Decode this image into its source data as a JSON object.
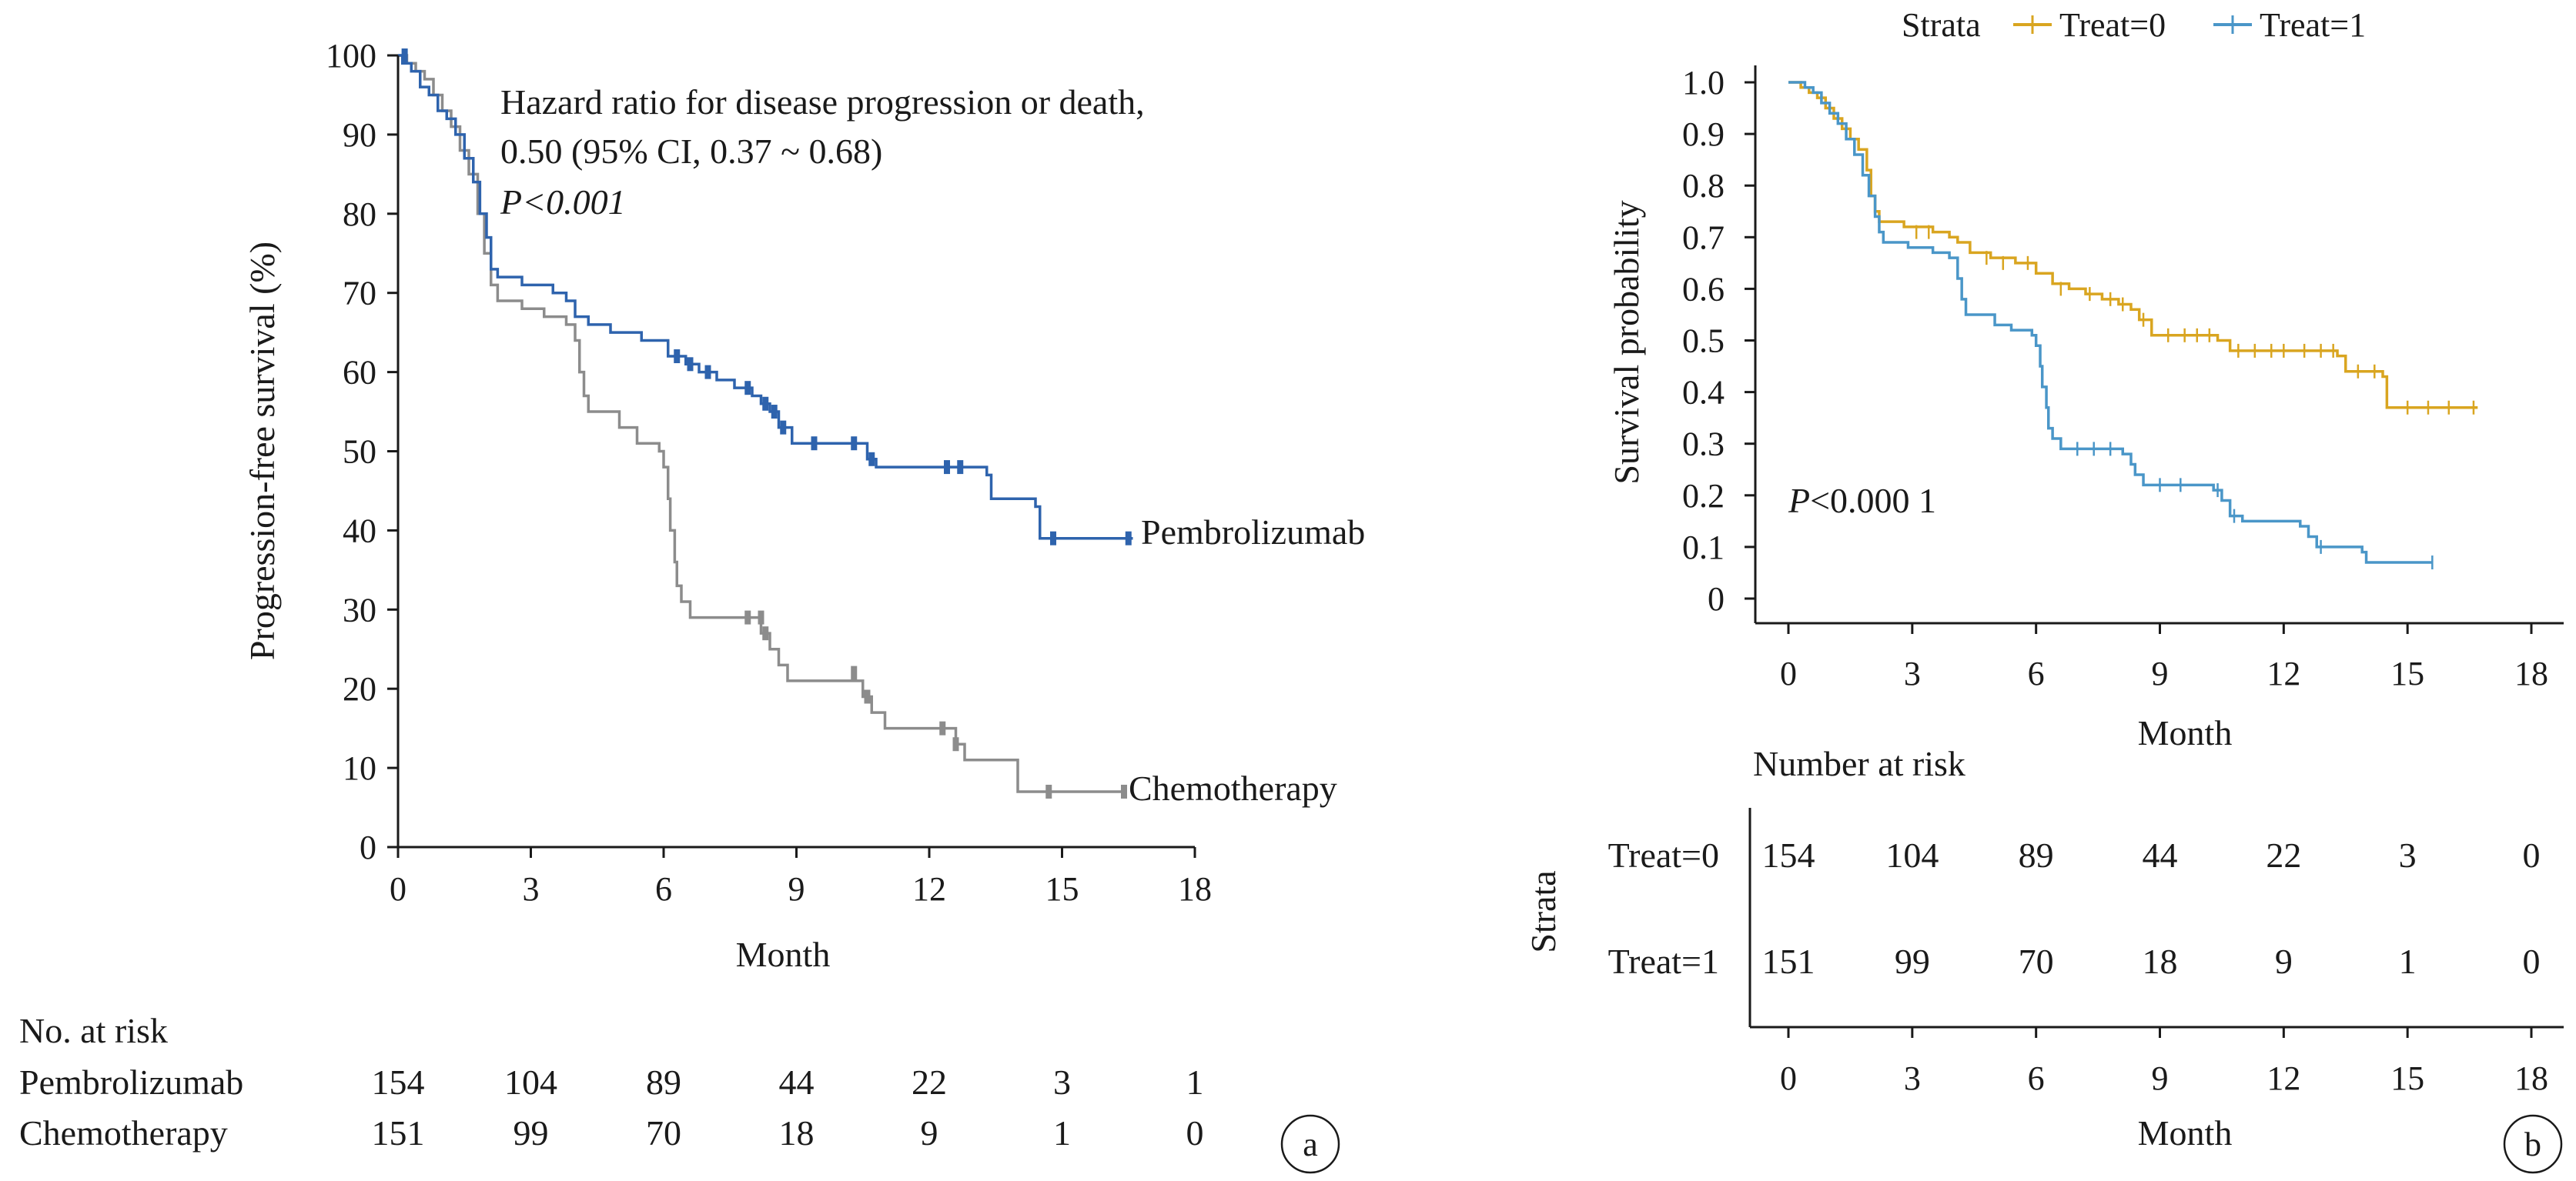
{
  "colors": {
    "pembrolizumab": "#2e63ad",
    "chemotherapy": "#8c8c8c",
    "treat0": "#d9a520",
    "treat1": "#4a96c8",
    "axis": "#1a1a1a"
  },
  "chart_data": [
    {
      "type": "line",
      "panel_label": "a",
      "xlabel": "Month",
      "ylabel": "Progression-free survival (%)",
      "xticks": [
        0,
        3,
        6,
        9,
        12,
        15,
        18
      ],
      "yticks": [
        0,
        10,
        20,
        30,
        40,
        50,
        60,
        70,
        80,
        90,
        100
      ],
      "xlim": [
        0,
        18
      ],
      "ylim": [
        0,
        100
      ],
      "annotation_lines": [
        "Hazard ratio for disease progression or death,",
        "0.50 (95% CI, 0.37 ~ 0.68)",
        "P<0.001"
      ],
      "series": [
        {
          "name": "Pembrolizumab",
          "color": "#2e63ad",
          "steps": [
            [
              0,
              100
            ],
            [
              0.1,
              99
            ],
            [
              0.3,
              98
            ],
            [
              0.5,
              96
            ],
            [
              0.7,
              95
            ],
            [
              0.9,
              93
            ],
            [
              1.1,
              92
            ],
            [
              1.3,
              90
            ],
            [
              1.5,
              87
            ],
            [
              1.7,
              84
            ],
            [
              1.85,
              80
            ],
            [
              2.0,
              77
            ],
            [
              2.1,
              73
            ],
            [
              2.25,
              72
            ],
            [
              2.8,
              71
            ],
            [
              3.5,
              70
            ],
            [
              3.8,
              69
            ],
            [
              4.0,
              67
            ],
            [
              4.3,
              66
            ],
            [
              4.8,
              65
            ],
            [
              5.5,
              64
            ],
            [
              6.1,
              62
            ],
            [
              6.5,
              61
            ],
            [
              6.8,
              60
            ],
            [
              7.2,
              59
            ],
            [
              7.6,
              58
            ],
            [
              8.0,
              57
            ],
            [
              8.2,
              56
            ],
            [
              8.4,
              55
            ],
            [
              8.6,
              53
            ],
            [
              8.9,
              51
            ],
            [
              10.6,
              49
            ],
            [
              10.8,
              48
            ],
            [
              13.3,
              47
            ],
            [
              13.4,
              44
            ],
            [
              14.4,
              43
            ],
            [
              14.5,
              39
            ],
            [
              16.6,
              39
            ]
          ],
          "censors": [
            [
              0.15,
              100
            ],
            [
              6.3,
              62
            ],
            [
              6.6,
              61
            ],
            [
              7.0,
              60
            ],
            [
              7.9,
              58
            ],
            [
              8.3,
              56
            ],
            [
              8.5,
              55
            ],
            [
              8.7,
              53
            ],
            [
              9.4,
              51
            ],
            [
              10.3,
              51
            ],
            [
              10.7,
              49
            ],
            [
              12.4,
              48
            ],
            [
              12.7,
              48
            ],
            [
              14.8,
              39
            ],
            [
              16.5,
              39
            ]
          ]
        },
        {
          "name": "Chemotherapy",
          "color": "#8c8c8c",
          "steps": [
            [
              0,
              100
            ],
            [
              0.2,
              99
            ],
            [
              0.4,
              98
            ],
            [
              0.6,
              97
            ],
            [
              0.8,
              95
            ],
            [
              1.0,
              93
            ],
            [
              1.2,
              91
            ],
            [
              1.4,
              88
            ],
            [
              1.6,
              85
            ],
            [
              1.8,
              80
            ],
            [
              1.95,
              75
            ],
            [
              2.1,
              71
            ],
            [
              2.25,
              69
            ],
            [
              2.8,
              68
            ],
            [
              3.3,
              67
            ],
            [
              3.8,
              66
            ],
            [
              4.0,
              64
            ],
            [
              4.1,
              60
            ],
            [
              4.2,
              57
            ],
            [
              4.3,
              55
            ],
            [
              5.0,
              53
            ],
            [
              5.4,
              51
            ],
            [
              5.9,
              50
            ],
            [
              6.0,
              48
            ],
            [
              6.1,
              44
            ],
            [
              6.15,
              40
            ],
            [
              6.25,
              36
            ],
            [
              6.3,
              33
            ],
            [
              6.4,
              31
            ],
            [
              6.6,
              29
            ],
            [
              8.1,
              29
            ],
            [
              8.2,
              27
            ],
            [
              8.4,
              25
            ],
            [
              8.6,
              23
            ],
            [
              8.8,
              21
            ],
            [
              10.3,
              21
            ],
            [
              10.5,
              19
            ],
            [
              10.7,
              17
            ],
            [
              11.0,
              15
            ],
            [
              12.4,
              15
            ],
            [
              12.6,
              13
            ],
            [
              12.8,
              11
            ],
            [
              13.9,
              11
            ],
            [
              14.0,
              7
            ],
            [
              16.4,
              7
            ]
          ],
          "censors": [
            [
              7.9,
              29
            ],
            [
              8.2,
              29
            ],
            [
              8.3,
              27
            ],
            [
              10.3,
              22
            ],
            [
              10.6,
              19
            ],
            [
              12.3,
              15
            ],
            [
              12.6,
              13
            ],
            [
              14.7,
              7
            ],
            [
              16.4,
              7
            ]
          ]
        }
      ],
      "risk_table": {
        "title": "No. at risk",
        "rows": [
          {
            "label": "Pembrolizumab",
            "values": [
              "154",
              "104",
              "89",
              "44",
              "22",
              "3",
              "1"
            ]
          },
          {
            "label": "Chemotherapy",
            "values": [
              "151",
              "99",
              "70",
              "18",
              "9",
              "1",
              "0"
            ]
          }
        ]
      }
    },
    {
      "type": "line",
      "panel_label": "b",
      "legend_title": "Strata",
      "legend_position": "top",
      "xlabel": "Month",
      "ylabel": "Survival probability",
      "xticks": [
        0,
        3,
        6,
        9,
        12,
        15,
        18
      ],
      "ytick_labels": [
        "1.0",
        "0.9",
        "0.8",
        "0.7",
        "0.6",
        "0.5",
        "0.4",
        "0.3",
        "0.2",
        "0.1",
        "0"
      ],
      "xlim": [
        0,
        18
      ],
      "ylim": [
        0,
        1
      ],
      "annotation": "P<0.000 1",
      "series": [
        {
          "name": "Treat=0",
          "color": "#d9a520",
          "steps": [
            [
              0,
              1.0
            ],
            [
              0.3,
              0.99
            ],
            [
              0.5,
              0.98
            ],
            [
              0.7,
              0.97
            ],
            [
              0.9,
              0.95
            ],
            [
              1.1,
              0.93
            ],
            [
              1.3,
              0.91
            ],
            [
              1.5,
              0.89
            ],
            [
              1.7,
              0.87
            ],
            [
              1.9,
              0.83
            ],
            [
              2.0,
              0.78
            ],
            [
              2.1,
              0.75
            ],
            [
              2.2,
              0.73
            ],
            [
              2.8,
              0.72
            ],
            [
              3.5,
              0.71
            ],
            [
              3.9,
              0.7
            ],
            [
              4.1,
              0.69
            ],
            [
              4.4,
              0.67
            ],
            [
              4.9,
              0.66
            ],
            [
              5.5,
              0.65
            ],
            [
              6.0,
              0.63
            ],
            [
              6.4,
              0.61
            ],
            [
              6.8,
              0.6
            ],
            [
              7.2,
              0.59
            ],
            [
              7.6,
              0.58
            ],
            [
              8.0,
              0.57
            ],
            [
              8.3,
              0.56
            ],
            [
              8.5,
              0.54
            ],
            [
              8.8,
              0.51
            ],
            [
              10.4,
              0.5
            ],
            [
              10.7,
              0.48
            ],
            [
              13.3,
              0.47
            ],
            [
              13.5,
              0.44
            ],
            [
              14.4,
              0.43
            ],
            [
              14.5,
              0.37
            ],
            [
              16.7,
              0.37
            ]
          ],
          "censors": [
            [
              3.1,
              0.71
            ],
            [
              3.4,
              0.71
            ],
            [
              4.8,
              0.66
            ],
            [
              5.2,
              0.65
            ],
            [
              5.8,
              0.65
            ],
            [
              6.6,
              0.6
            ],
            [
              7.3,
              0.59
            ],
            [
              7.8,
              0.58
            ],
            [
              8.1,
              0.57
            ],
            [
              8.6,
              0.54
            ],
            [
              9.2,
              0.51
            ],
            [
              9.6,
              0.51
            ],
            [
              9.9,
              0.51
            ],
            [
              10.2,
              0.51
            ],
            [
              10.9,
              0.48
            ],
            [
              11.3,
              0.48
            ],
            [
              11.7,
              0.48
            ],
            [
              12.0,
              0.48
            ],
            [
              12.5,
              0.48
            ],
            [
              12.9,
              0.48
            ],
            [
              13.2,
              0.48
            ],
            [
              13.8,
              0.44
            ],
            [
              14.2,
              0.44
            ],
            [
              15.0,
              0.37
            ],
            [
              15.5,
              0.37
            ],
            [
              16.0,
              0.37
            ],
            [
              16.6,
              0.37
            ]
          ]
        },
        {
          "name": "Treat=1",
          "color": "#4a96c8",
          "steps": [
            [
              0,
              1.0
            ],
            [
              0.4,
              0.99
            ],
            [
              0.6,
              0.98
            ],
            [
              0.8,
              0.96
            ],
            [
              1.0,
              0.94
            ],
            [
              1.2,
              0.92
            ],
            [
              1.4,
              0.89
            ],
            [
              1.6,
              0.86
            ],
            [
              1.8,
              0.82
            ],
            [
              1.95,
              0.78
            ],
            [
              2.1,
              0.74
            ],
            [
              2.2,
              0.71
            ],
            [
              2.3,
              0.69
            ],
            [
              2.9,
              0.68
            ],
            [
              3.5,
              0.67
            ],
            [
              3.9,
              0.66
            ],
            [
              4.1,
              0.62
            ],
            [
              4.2,
              0.58
            ],
            [
              4.3,
              0.55
            ],
            [
              5.0,
              0.53
            ],
            [
              5.4,
              0.52
            ],
            [
              5.9,
              0.51
            ],
            [
              6.0,
              0.49
            ],
            [
              6.1,
              0.45
            ],
            [
              6.15,
              0.41
            ],
            [
              6.25,
              0.37
            ],
            [
              6.3,
              0.33
            ],
            [
              6.4,
              0.31
            ],
            [
              6.6,
              0.29
            ],
            [
              8.1,
              0.28
            ],
            [
              8.3,
              0.26
            ],
            [
              8.4,
              0.24
            ],
            [
              8.6,
              0.22
            ],
            [
              10.3,
              0.21
            ],
            [
              10.5,
              0.19
            ],
            [
              10.7,
              0.16
            ],
            [
              11.0,
              0.15
            ],
            [
              12.4,
              0.14
            ],
            [
              12.6,
              0.12
            ],
            [
              12.8,
              0.1
            ],
            [
              13.9,
              0.09
            ],
            [
              14.0,
              0.07
            ],
            [
              15.6,
              0.07
            ]
          ],
          "censors": [
            [
              7.0,
              0.29
            ],
            [
              7.4,
              0.29
            ],
            [
              7.8,
              0.29
            ],
            [
              9.0,
              0.22
            ],
            [
              9.5,
              0.22
            ],
            [
              10.4,
              0.21
            ],
            [
              10.8,
              0.16
            ],
            [
              12.9,
              0.1
            ],
            [
              15.6,
              0.07
            ]
          ]
        }
      ],
      "risk_table": {
        "title": "Number at risk",
        "ylabel": "Strata",
        "xlabel": "Month",
        "rows": [
          {
            "label": "Treat=0",
            "values": [
              "154",
              "104",
              "89",
              "44",
              "22",
              "3",
              "0"
            ]
          },
          {
            "label": "Treat=1",
            "values": [
              "151",
              "99",
              "70",
              "18",
              "9",
              "1",
              "0"
            ]
          }
        ]
      }
    }
  ]
}
